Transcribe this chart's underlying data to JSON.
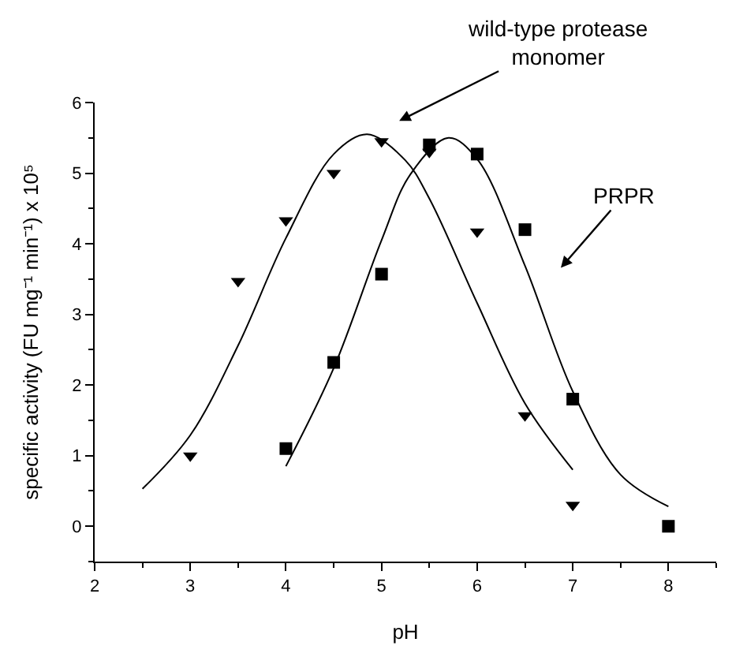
{
  "chart_data": {
    "type": "scatter",
    "xlabel": "pH",
    "ylabel": "specific activity (FU mg⁻¹ min⁻¹) x 10⁵",
    "xlim": [
      2,
      8.5
    ],
    "xticks": [
      2,
      3,
      4,
      5,
      6,
      7,
      8
    ],
    "ylim": [
      -0.5,
      6
    ],
    "yticks": [
      0,
      1,
      2,
      3,
      4,
      5,
      6
    ],
    "series": [
      {
        "marker": "triangle",
        "color": "#000000",
        "x": [
          3,
          3.5,
          4,
          4.5,
          5,
          5.5,
          6,
          6.5,
          7
        ],
        "values": [
          1.0,
          3.47,
          4.33,
          5.0,
          5.45,
          5.3,
          4.17,
          1.57,
          0.3
        ]
      },
      {
        "marker": "square",
        "color": "#000000",
        "x": [
          4,
          4.5,
          5,
          5.5,
          6,
          6.5,
          7,
          8
        ],
        "values": [
          1.1,
          2.32,
          3.57,
          5.4,
          5.27,
          4.2,
          1.8,
          0.0
        ]
      },
      {
        "type": "line",
        "marker": "none",
        "color": "#000000",
        "x": [
          2.5,
          3,
          3.5,
          4,
          4.5,
          4.85,
          5.25,
          5.5,
          6,
          6.5,
          7
        ],
        "values": [
          0.53,
          1.29,
          2.56,
          4.08,
          5.27,
          5.55,
          5.18,
          4.64,
          3.16,
          1.74,
          0.8
        ]
      },
      {
        "type": "line",
        "marker": "none",
        "color": "#000000",
        "x": [
          4,
          4.5,
          5,
          5.3,
          5.7,
          6,
          6.5,
          7,
          7.5,
          8
        ],
        "values": [
          0.85,
          2.24,
          4.05,
          4.98,
          5.5,
          5.2,
          3.69,
          1.91,
          0.73,
          0.28
        ]
      }
    ],
    "annotations": [
      "wild-type protease monomer",
      "PRPR"
    ]
  }
}
